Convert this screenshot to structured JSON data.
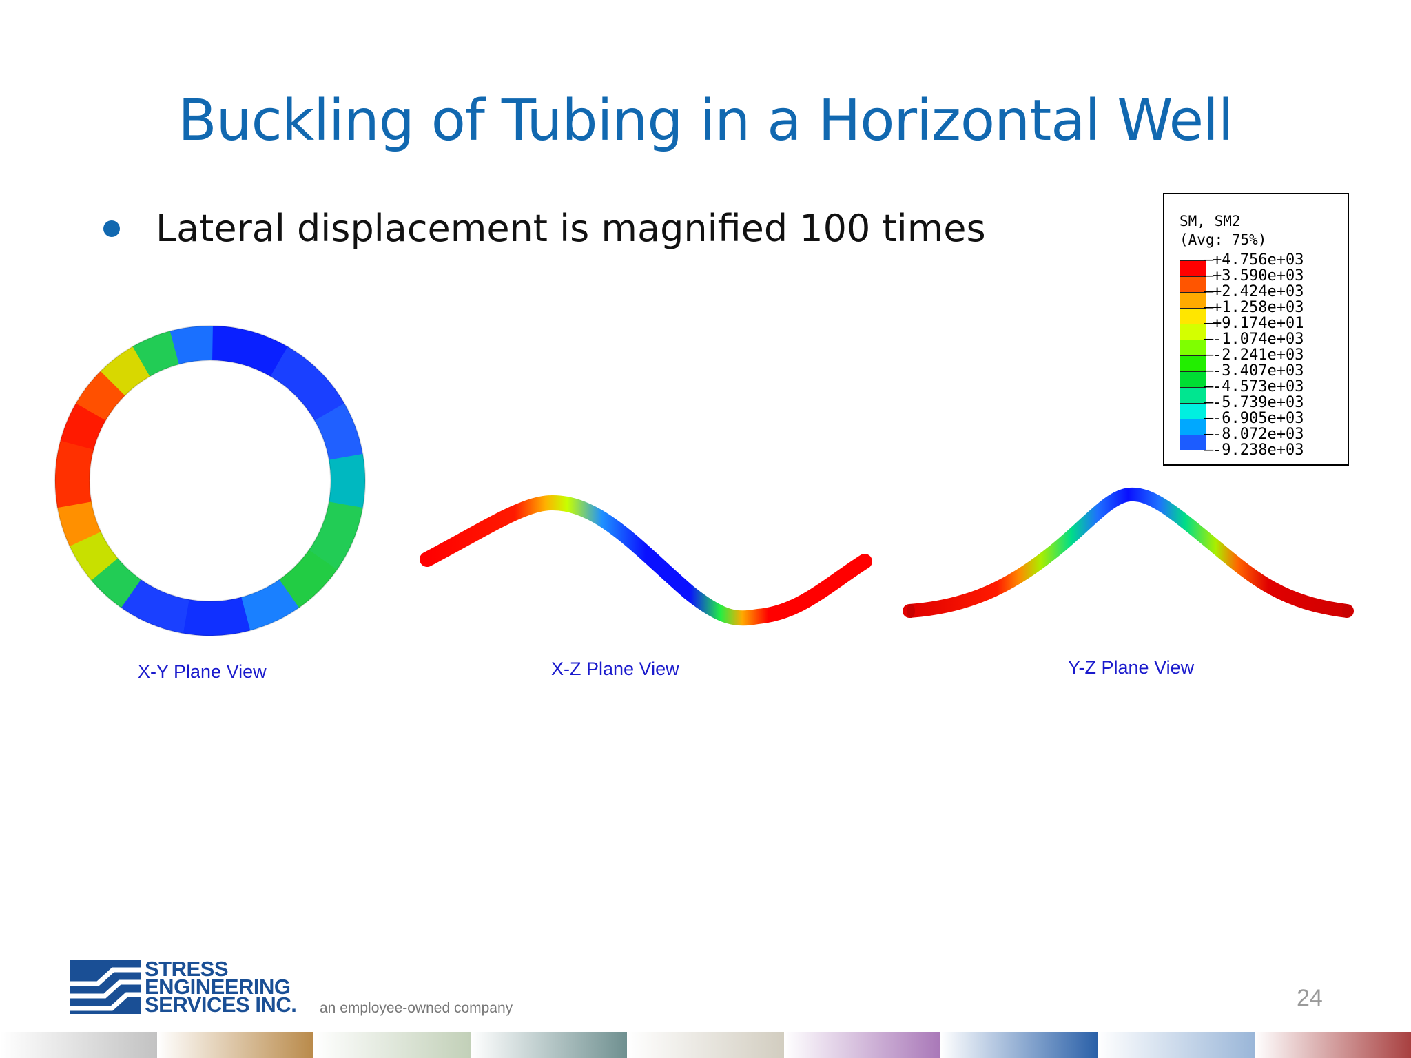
{
  "title": "Buckling of Tubing in a Horizontal Well",
  "bullet": "Lateral displacement is magnified 100 times",
  "legend": {
    "title_line1": "SM, SM2",
    "title_line2": "(Avg: 75%)",
    "values": [
      "+4.756e+03",
      "+3.590e+03",
      "+2.424e+03",
      "+1.258e+03",
      "+9.174e+01",
      "-1.074e+03",
      "-2.241e+03",
      "-3.407e+03",
      "-4.573e+03",
      "-5.739e+03",
      "-6.905e+03",
      "-8.072e+03",
      "-9.238e+03"
    ],
    "colors": [
      "#ff0000",
      "#ff5500",
      "#ffaa00",
      "#ffe600",
      "#d4ff00",
      "#7fff00",
      "#22ee00",
      "#00dd33",
      "#00e690",
      "#00f0e0",
      "#00a8ff",
      "#1c5cff",
      "#0000ff"
    ]
  },
  "views": {
    "xy_caption": "X-Y Plane View",
    "xz_caption": "X-Z Plane View",
    "yz_caption": "Y-Z Plane View"
  },
  "logo": {
    "line1": "STRESS",
    "line2": "ENGINEERING",
    "line3": "SERVICES INC.",
    "tagline": "an employee-owned company"
  },
  "page_number": "24",
  "footer_colors": [
    "#c2c2c2",
    "#b98a4a",
    "#c2d0b8",
    "#6f9090",
    "#d2cdc0",
    "#a978b8",
    "#2a60a8",
    "#9ab6d8",
    "#a84040"
  ]
}
